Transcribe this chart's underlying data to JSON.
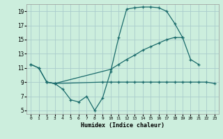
{
  "xlabel": "Humidex (Indice chaleur)",
  "bg_color": "#cceedd",
  "grid_color": "#aacccc",
  "line_color": "#1a6b6b",
  "xlim": [
    -0.5,
    23.5
  ],
  "ylim": [
    4.5,
    20.0
  ],
  "xticks": [
    0,
    1,
    2,
    3,
    4,
    5,
    6,
    7,
    8,
    9,
    10,
    11,
    12,
    13,
    14,
    15,
    16,
    17,
    18,
    19,
    20,
    21,
    22,
    23
  ],
  "yticks": [
    5,
    7,
    9,
    11,
    13,
    15,
    17,
    19
  ],
  "series1_x": [
    0,
    1,
    2,
    3,
    4,
    5,
    6,
    7,
    8,
    9,
    10,
    11,
    12,
    13,
    14,
    15,
    16,
    17,
    18,
    19,
    20,
    21
  ],
  "series1_y": [
    11.5,
    11.0,
    9.0,
    8.8,
    8.0,
    6.5,
    6.2,
    7.0,
    5.0,
    6.8,
    10.5,
    15.3,
    19.3,
    19.5,
    19.6,
    19.6,
    19.5,
    19.0,
    17.3,
    15.3,
    12.2,
    11.5
  ],
  "series2_x": [
    0,
    1,
    2,
    3,
    10,
    11,
    12,
    13,
    14,
    15,
    16,
    17,
    18,
    19
  ],
  "series2_y": [
    11.5,
    11.0,
    9.0,
    8.8,
    10.8,
    11.5,
    12.2,
    12.8,
    13.5,
    14.0,
    14.5,
    15.0,
    15.3,
    15.3
  ],
  "series3_x": [
    2,
    3,
    9,
    10,
    11,
    12,
    13,
    14,
    15,
    16,
    17,
    18,
    19,
    20,
    21,
    22,
    23
  ],
  "series3_y": [
    9.0,
    8.8,
    9.0,
    9.0,
    9.0,
    9.0,
    9.0,
    9.0,
    9.0,
    9.0,
    9.0,
    9.0,
    9.0,
    9.0,
    9.0,
    9.0,
    8.8
  ]
}
